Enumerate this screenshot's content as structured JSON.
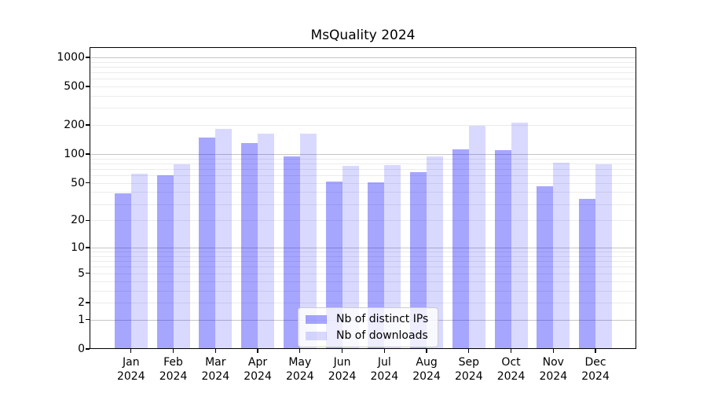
{
  "chart_data": {
    "type": "bar",
    "title": "MsQuality 2024",
    "categories": [
      "Jan 2024",
      "Feb 2024",
      "Mar 2024",
      "Apr 2024",
      "May 2024",
      "Jun 2024",
      "Jul 2024",
      "Aug 2024",
      "Sep 2024",
      "Oct 2024",
      "Nov 2024",
      "Dec 2024"
    ],
    "months": [
      "Jan",
      "Feb",
      "Mar",
      "Apr",
      "May",
      "Jun",
      "Jul",
      "Aug",
      "Sep",
      "Oct",
      "Nov",
      "Dec"
    ],
    "year_label": "2024",
    "series": [
      {
        "name": "Nb of distinct IPs",
        "color": "rgba(0,0,255,0.35)",
        "color_hex_on_white": "#a6a6ff",
        "values": [
          39,
          60,
          149,
          131,
          95,
          52,
          51,
          65,
          113,
          109,
          46,
          34
        ]
      },
      {
        "name": "Nb of downloads",
        "color": "rgba(0,0,255,0.15)",
        "color_hex_on_white": "#d9d9ff",
        "values": [
          63,
          79,
          184,
          163,
          164,
          75,
          77,
          95,
          195,
          213,
          81,
          78
        ]
      }
    ],
    "xlabel": "",
    "ylabel": "",
    "yscale": "symlog-like (position proportional to log10(1+value), 0 shown at baseline)",
    "yticks": [
      1000,
      500,
      200,
      100,
      50,
      20,
      10,
      5,
      2,
      1,
      0
    ],
    "ylim": [
      0,
      1270
    ],
    "grid": {
      "horizontal": true,
      "major_at": [
        1,
        10,
        100,
        1000
      ],
      "minor": "2-9 within each decade"
    },
    "legend": {
      "position": "lower center inside axes",
      "entries": [
        "Nb of distinct IPs",
        "Nb of downloads"
      ]
    }
  },
  "colors": {
    "background": "#ffffff",
    "axis": "#000000",
    "text": "#1a1a1a",
    "grid_major": "#c6c6c6",
    "grid_minor": "#ebebeb",
    "bar_ips": "rgba(0,0,255,0.35)",
    "bar_downloads": "rgba(0,0,255,0.15)",
    "legend_bg": "rgba(255,255,255,0.8)",
    "legend_border": "#cccccc"
  }
}
